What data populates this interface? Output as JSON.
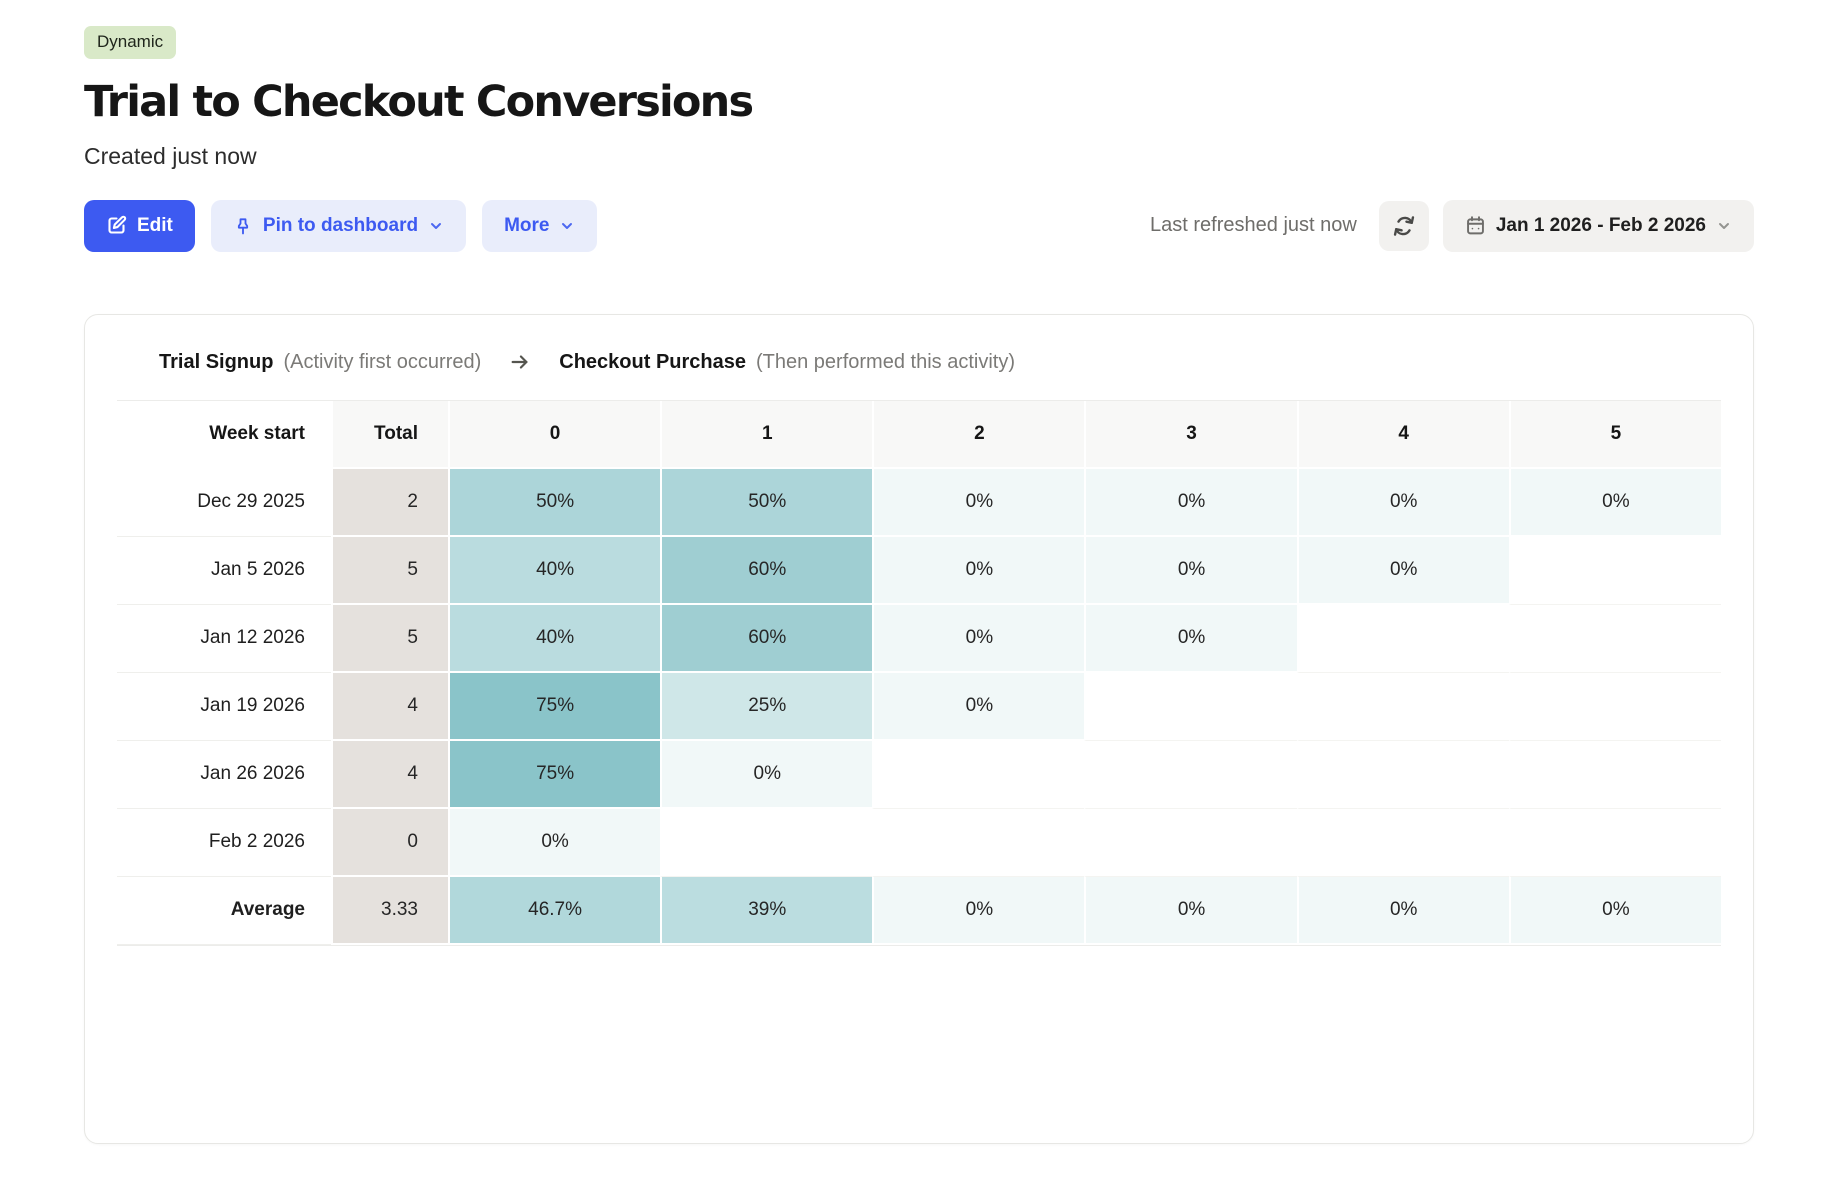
{
  "page": {
    "badge": "Dynamic",
    "title": "Trial to Checkout Conversions",
    "subtitle": "Created just now"
  },
  "toolbar": {
    "edit_label": "Edit",
    "pin_label": "Pin to dashboard",
    "more_label": "More",
    "last_refreshed": "Last refreshed just now",
    "date_range": "Jan 1 2026 - Feb 2 2026"
  },
  "funnel": {
    "step1_name": "Trial Signup",
    "step1_desc": "(Activity first occurred)",
    "step2_name": "Checkout Purchase",
    "step2_desc": "(Then performed this activity)"
  },
  "colors": {
    "accent_blue": "#3d5af1",
    "accent_blue_light": "#e9edfb",
    "badge_green": "#d9e9c8",
    "total_column_bg": "#e5e1dd",
    "cell_scale_low": "#f1f8f8",
    "cell_scale_high": "#8ac4c9",
    "cell_scale_max_value": 75
  },
  "chart_data": {
    "type": "table",
    "title": "Trial to Checkout Conversions",
    "columns": [
      "Week start",
      "Total",
      "0",
      "1",
      "2",
      "3",
      "4",
      "5"
    ],
    "value_unit": "%",
    "rows": [
      {
        "label": "Dec 29 2025",
        "total": "2",
        "values": [
          50,
          50,
          0,
          0,
          0,
          0
        ],
        "bold": false
      },
      {
        "label": "Jan 5 2026",
        "total": "5",
        "values": [
          40,
          60,
          0,
          0,
          0,
          null
        ],
        "bold": false
      },
      {
        "label": "Jan 12 2026",
        "total": "5",
        "values": [
          40,
          60,
          0,
          0,
          null,
          null
        ],
        "bold": false
      },
      {
        "label": "Jan 19 2026",
        "total": "4",
        "values": [
          75,
          25,
          0,
          null,
          null,
          null
        ],
        "bold": false
      },
      {
        "label": "Jan 26 2026",
        "total": "4",
        "values": [
          75,
          0,
          null,
          null,
          null,
          null
        ],
        "bold": false
      },
      {
        "label": "Feb 2 2026",
        "total": "0",
        "values": [
          0,
          null,
          null,
          null,
          null,
          null
        ],
        "bold": false
      },
      {
        "label": "Average",
        "total": "3.33",
        "values": [
          46.7,
          39,
          0,
          0,
          0,
          0
        ],
        "bold": true
      }
    ]
  }
}
